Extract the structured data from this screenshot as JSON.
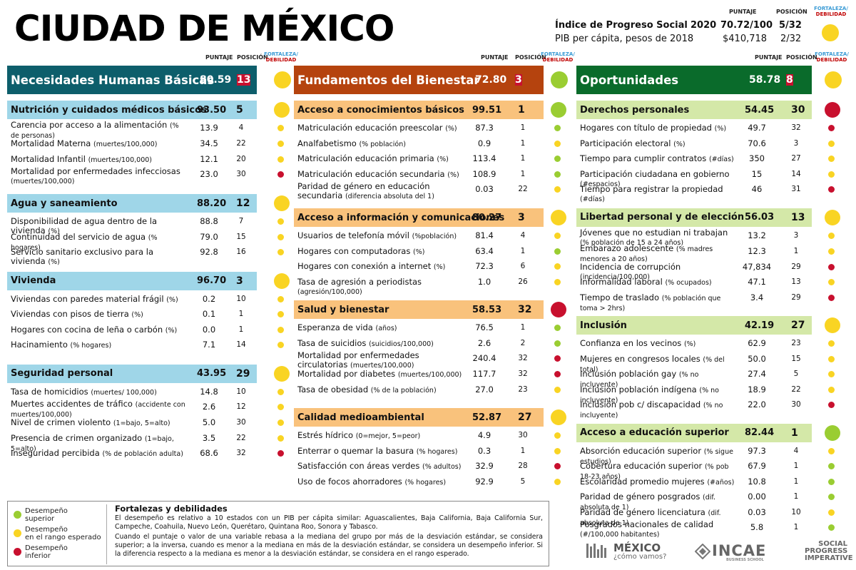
{
  "title": "CIUDAD DE MÉXICO",
  "header": {
    "puntaje": "PUNTAJE",
    "posicion": "POSICIÓN",
    "fortaleza": "FORTALEZA/",
    "debilidad": "DEBILIDAD"
  },
  "summary": {
    "ips_label": "Índice de Progreso Social",
    "ips_year": "2020",
    "ips_score": "70.72/100",
    "ips_rank": "5/32",
    "pib_label": "PIB per cápita, pesos de 2018",
    "pib_value": "$410,718",
    "pib_rank": "2/32",
    "ips_dot": "y"
  },
  "colors": {
    "nhb": "#0d5e6b",
    "fb": "#b5430e",
    "op": "#0a6b2b",
    "nhb_sub": "#9fd6e8",
    "fb_sub": "#f9c27c",
    "op_sub": "#d4e8a8",
    "green": "#9acd32",
    "yellow": "#f9d423",
    "red": "#c8102e"
  },
  "columns": [
    {
      "title": "Necesidades Humanas Básicas",
      "score": "80.59",
      "rank": "13",
      "dot": "y",
      "sections": [
        {
          "title": "Nutrición y cuidados médicos básicos",
          "score": "93.50",
          "rank": "5",
          "dot": "y",
          "rows": [
            {
              "l": "Carencia por acceso a la alimentación",
              "u": "(% de personas)",
              "v": "13.9",
              "p": "4",
              "d": "y",
              "two": true
            },
            {
              "l": "Mortalidad Materna",
              "u": "(muertes/100,000)",
              "v": "34.5",
              "p": "22",
              "d": "y"
            },
            {
              "l": "Mortalidad Infantil",
              "u": "(muertes/100,000)",
              "v": "12.1",
              "p": "20",
              "d": "y"
            },
            {
              "l": "Mortalidad por enfermedades infecciosas",
              "u": "(muertes/100,000)",
              "v": "23.0",
              "p": "30",
              "d": "r",
              "two": true
            }
          ]
        },
        {
          "title": "Agua y saneamiento",
          "score": "88.20",
          "rank": "12",
          "dot": "y",
          "rows": [
            {
              "l": "Disponibilidad de agua dentro de la vivienda",
              "u": "(%)",
              "v": "88.8",
              "p": "7",
              "d": "y"
            },
            {
              "l": "Continuidad del servicio de agua",
              "u": "(% hogares)",
              "v": "79.0",
              "p": "15",
              "d": "y"
            },
            {
              "l": "Servicio sanitario  exclusivo para la vivienda",
              "u": "(%)",
              "v": "92.8",
              "p": "16",
              "d": "y"
            }
          ]
        },
        {
          "title": "Vivienda",
          "score": "96.70",
          "rank": "3",
          "dot": "y",
          "rows": [
            {
              "l": "Viviendas  con paredes material frágil",
              "u": "(%)",
              "v": "0.2",
              "p": "10",
              "d": "y"
            },
            {
              "l": "Viviendas  con pisos de tierra",
              "u": "(%)",
              "v": "0.1",
              "p": "1",
              "d": "y"
            },
            {
              "l": "Hogares con cocina de leña o carbón",
              "u": "(%)",
              "v": "0.0",
              "p": "1",
              "d": "y"
            },
            {
              "l": "Hacinamiento",
              "u": "(% hogares)",
              "v": "7.1",
              "p": "14",
              "d": "y"
            }
          ]
        },
        {
          "title": "Seguridad personal",
          "score": "43.95",
          "rank": "29",
          "dot": "y",
          "rows": [
            {
              "l": "Tasa de homicidios",
              "u": "(muertes/ 100,000)",
              "v": "14.8",
              "p": "10",
              "d": "y"
            },
            {
              "l": "Muertes accidentes de tráfico",
              "u": "(accidente con muertes/100,000)",
              "v": "2.6",
              "p": "12",
              "d": "y",
              "two": true
            },
            {
              "l": "Nivel de crimen violento",
              "u": "(1=bajo, 5=alto)",
              "v": "5.0",
              "p": "30",
              "d": "y"
            },
            {
              "l": "Presencia de crimen organizado",
              "u": "(1=bajo, 5=alto)",
              "v": "3.5",
              "p": "22",
              "d": "y"
            },
            {
              "l": "Inseguridad percibida",
              "u": "(% de población adulta)",
              "v": "68.6",
              "p": "32",
              "d": "r"
            }
          ]
        }
      ]
    },
    {
      "title": "Fundamentos del Bienestar",
      "score": "72.80",
      "rank": "3",
      "dot": "g",
      "sections": [
        {
          "title": "Acceso a conocimientos básicos",
          "score": "99.51",
          "rank": "1",
          "dot": "g",
          "rows": [
            {
              "l": "Matriculación educación preescolar",
              "u": "(%)",
              "v": "87.3",
              "p": "1",
              "d": "g"
            },
            {
              "l": "Analfabetismo",
              "u": "(% población)",
              "v": "0.9",
              "p": "1",
              "d": "y"
            },
            {
              "l": "Matriculación educación primaria",
              "u": "(%)",
              "v": "113.4",
              "p": "1",
              "d": "g"
            },
            {
              "l": "Matriculación educación secundaria",
              "u": "(%)",
              "v": "108.9",
              "p": "1",
              "d": "g"
            },
            {
              "l": "Paridad de género en educación secundaria",
              "u": "(diferencia absoluta del 1)",
              "v": "0.03",
              "p": "22",
              "d": "y",
              "two": true
            }
          ]
        },
        {
          "title": "Acceso a información y comunicaciones",
          "score": "80.27",
          "rank": "3",
          "dot": "y",
          "rows": [
            {
              "l": "Usuarios de telefonía móvil",
              "u": "(%población)",
              "v": "81.4",
              "p": "4",
              "d": "y"
            },
            {
              "l": "Hogares con computadoras",
              "u": "(%)",
              "v": "63.4",
              "p": "1",
              "d": "g"
            },
            {
              "l": "Hogares con conexión a internet",
              "u": "(%)",
              "v": "72.3",
              "p": "6",
              "d": "y"
            },
            {
              "l": "Tasa de agresión a periodistas",
              "u": "(agresión/100,000)",
              "v": "1.0",
              "p": "26",
              "d": "y"
            }
          ]
        },
        {
          "title": "Salud y bienestar",
          "score": "58.53",
          "rank": "32",
          "dot": "r",
          "rows": [
            {
              "l": "Esperanza de vida",
              "u": "(años)",
              "v": "76.5",
              "p": "1",
              "d": "g"
            },
            {
              "l": "Tasa de suicidios",
              "u": "(suicidios/100,000)",
              "v": "2.6",
              "p": "2",
              "d": "g"
            },
            {
              "l": "Mortalidad por enfermedades circulatorias",
              "u": "(muertes/100,000)",
              "v": "240.4",
              "p": "32",
              "d": "r",
              "two": true
            },
            {
              "l": "Mortalidad por diabetes",
              "u": "(muertes/100,000)",
              "v": "117.7",
              "p": "32",
              "d": "r"
            },
            {
              "l": "Tasa de obesidad",
              "u": "(% de la población)",
              "v": "27.0",
              "p": "23",
              "d": "y"
            }
          ]
        },
        {
          "title": "Calidad medioambiental",
          "score": "52.87",
          "rank": "27",
          "dot": "y",
          "rows": [
            {
              "l": "Estrés hídrico",
              "u": " (0=mejor, 5=peor)",
              "v": "4.9",
              "p": "30",
              "d": "y"
            },
            {
              "l": "Enterrar o quemar la basura",
              "u": "(% hogares)",
              "v": "0.3",
              "p": "1",
              "d": "y"
            },
            {
              "l": "Satisfacción con áreas verdes",
              "u": "(% adultos)",
              "v": "32.9",
              "p": "28",
              "d": "r"
            },
            {
              "l": "Uso de focos ahorradores",
              "u": "(% hogares)",
              "v": "92.9",
              "p": "5",
              "d": "y"
            }
          ]
        }
      ]
    },
    {
      "title": "Oportunidades",
      "score": "58.78",
      "rank": "8",
      "dot": "y",
      "sections": [
        {
          "title": "Derechos personales",
          "score": "54.45",
          "rank": "30",
          "dot": "r",
          "rows": [
            {
              "l": "Hogares con título de propiedad",
              "u": "(%)",
              "v": "49.7",
              "p": "32",
              "d": "r"
            },
            {
              "l": "Participación electoral",
              "u": "(%)",
              "v": "70.6",
              "p": "3",
              "d": "y"
            },
            {
              "l": "Tiempo para cumplir contratos",
              "u": "(#días)",
              "v": "350",
              "p": "27",
              "d": "y"
            },
            {
              "l": "Participación ciudadana en gobierno",
              "u": "(#espacios)",
              "v": "15",
              "p": "14",
              "d": "y"
            },
            {
              "l": "Tiempo para registrar la propiedad",
              "u": "(#días)",
              "v": "46",
              "p": "31",
              "d": "r"
            }
          ]
        },
        {
          "title": "Libertad personal y de elección",
          "score": "56.03",
          "rank": "13",
          "dot": "y",
          "rows": [
            {
              "l": "Jóvenes que no estudian ni trabajan",
              "u": "(% población de 15 a 24 años)",
              "v": "13.2",
              "p": "3",
              "d": "y",
              "two": true
            },
            {
              "l": "Embarazo adolescente",
              "u": "(% madres menores a 20 años)",
              "v": "12.3",
              "p": "1",
              "d": "y",
              "two": true
            },
            {
              "l": "Incidencia de corrupción",
              "u": "(incidencia/100,000)",
              "v": "47,834",
              "p": "29",
              "d": "r"
            },
            {
              "l": "Informalidad laboral",
              "u": "(% ocupados)",
              "v": "47.1",
              "p": "13",
              "d": "y"
            },
            {
              "l": "Tiempo de traslado",
              "u": "(% población que toma > 2hrs)",
              "v": "3.4",
              "p": "29",
              "d": "r"
            }
          ]
        },
        {
          "title": "Inclusión",
          "score": "42.19",
          "rank": "27",
          "dot": "y",
          "rows": [
            {
              "l": "Confianza en los vecinos",
              "u": "(%)",
              "v": "62.9",
              "p": "23",
              "d": "y"
            },
            {
              "l": "Mujeres en congresos locales",
              "u": "(% del total)",
              "v": "50.0",
              "p": "15",
              "d": "y"
            },
            {
              "l": "Inclusión población gay",
              "u": "(% no incluyente)",
              "v": "27.4",
              "p": "5",
              "d": "y"
            },
            {
              "l": "Inclusión población indígena",
              "u": "(% no incluyente)",
              "v": "18.9",
              "p": "22",
              "d": "y"
            },
            {
              "l": "Inclusión pob c/ discapacidad",
              "u": "(% no incluyente)",
              "v": "22.0",
              "p": "30",
              "d": "r"
            }
          ]
        },
        {
          "title": "Acceso a educación superior",
          "score": "82.44",
          "rank": "1",
          "dot": "g",
          "rows": [
            {
              "l": "Absorción educación superior",
              "u": "(% sigue estudios)",
              "v": "97.3",
              "p": "4",
              "d": "y"
            },
            {
              "l": "Cobertura educación superior",
              "u": "(% pob 18-23 años)",
              "v": "67.9",
              "p": "1",
              "d": "g"
            },
            {
              "l": "Escolaridad promedio mujeres",
              "u": "(#años)",
              "v": "10.8",
              "p": "1",
              "d": "g"
            },
            {
              "l": "Paridad de género  posgrados",
              "u": "(dif. absoluta de 1)",
              "v": "0.00",
              "p": "1",
              "d": "g"
            },
            {
              "l": "Paridad de género licenciatura",
              "u": "(dif. absoluta de 1)",
              "v": "0.03",
              "p": "10",
              "d": "y"
            },
            {
              "l": "Posgrados nacionales de calidad",
              "u": "(#/100,000 habitantes)",
              "v": "5.8",
              "p": "1",
              "d": "g",
              "two": true
            }
          ]
        }
      ]
    }
  ],
  "legend": {
    "items": [
      {
        "d": "g",
        "l1": "Desempeño",
        "l2": "superior"
      },
      {
        "d": "y",
        "l1": "Desempeño",
        "l2": "en el rango esperado"
      },
      {
        "d": "r",
        "l1": "Desempeño",
        "l2": "inferior"
      }
    ],
    "title": "Fortalezas y debilidades",
    "p1": "El desempeño es relativo a 10 estados con un PIB per cápita similar: Aguascalientes, Baja California, Baja California Sur, Campeche, Coahuila, Nuevo León, Querétaro, Quintana Roo, Sonora y Tabasco.",
    "p2": "Cuando el puntaje o valor de una variable rebasa a la mediana del grupo por más de la desviación estándar, se considera superior; a la inversa, cuando es menor a la mediana en más de la desviación estándar, se considera un desempeño inferior. Si la diferencia respecto a la mediana es menor a la desviación estándar, se considera en el rango esperado."
  },
  "logos": {
    "mexico1": "MÉXICO",
    "mexico2": "¿cómo vamos?",
    "incae": "INCAE",
    "incae_sub": "BUSINESS SCHOOL",
    "spi1": "SOCIAL",
    "spi2": "PROGRESS",
    "spi3": "IMPERATIVE"
  }
}
